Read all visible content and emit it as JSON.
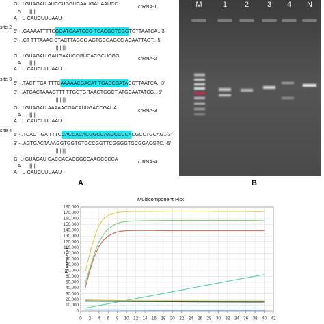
{
  "panel_a": {
    "label": "A",
    "rows": [
      {
        "segments": [
          {
            "text": "G  U GUAGAU "
          },
          {
            "text": "AUCCUGGUCAAUGAUAAUCC",
            "color": "#2b3fb0"
          }
        ],
        "side": "crRNA-1"
      },
      {
        "segments": [
          {
            "text": "   A      ||||||"
          }
        ]
      },
      {
        "segments": [
          {
            "text": "A    U CAUCUUUAAU"
          }
        ]
      },
      {
        "site": "site 2",
        "segments": [
          {
            "text": "5’ -..GAAAAT"
          },
          {
            "text": "TTTC",
            "color": "#c0392b"
          },
          {
            "text": "GGATGAATCCG TCACGCTCGG",
            "highlight": "#22e5ee"
          },
          {
            "text": "TGTTAATCA..-3’"
          }
        ]
      },
      {
        "segments": [
          {
            "text": "3’ -..CT TTTAAAC CTACTTAGGC AGTGCGAGCC ACAATTAGT..-5’"
          }
        ]
      },
      {
        "segments": [
          {
            "text": "                               ||||||||"
          }
        ]
      },
      {
        "segments": [
          {
            "text": "G  U GUAGAU "
          },
          {
            "text": "GAUGAAUCCGUCACGCUCGG",
            "color": "#2b3fb0"
          }
        ],
        "side": "crRNA-2"
      },
      {
        "segments": [
          {
            "text": "   A      ||||||"
          }
        ]
      },
      {
        "segments": [
          {
            "text": "A    U CAUCUUUAAU"
          }
        ]
      },
      {
        "site": "site 3",
        "segments": [
          {
            "text": "5’ -..TACT TGA "
          },
          {
            "text": "TTTC",
            "color": "#c0392b"
          },
          {
            "text": "AAAAACGACAT TGACCGATA",
            "highlight": "#22e5ee"
          },
          {
            "text": "CGTTAATCA..-3’"
          }
        ]
      },
      {
        "segments": [
          {
            "text": "3’ -..ATGACTAAAGTTT TTGCTG TAACTGGCT ATGCAATATCG..-5’"
          }
        ]
      },
      {
        "segments": [
          {
            "text": "                               ||||||||"
          }
        ]
      },
      {
        "segments": [
          {
            "text": "G  U GUAGAU "
          },
          {
            "text": "AAAAACGACAUUGACCGAUA",
            "color": "#2b3fb0"
          }
        ],
        "side": "crRNA-3"
      },
      {
        "segments": [
          {
            "text": "   A      ||||||"
          }
        ]
      },
      {
        "segments": [
          {
            "text": "A    U CAUCUUUAAU"
          }
        ]
      },
      {
        "site": "site 4",
        "segments": [
          {
            "text": "5’ -..TCACT GA "
          },
          {
            "text": "TTTC",
            "color": "#c0392b"
          },
          {
            "text": "CACCACACGGCCAAGCCCCA",
            "highlight": "#22e5ee"
          },
          {
            "text": "CGCCTGCAG..-3’"
          }
        ]
      },
      {
        "segments": [
          {
            "text": "3’ -..AGTGACTAAAGGTGGTGTGCCGGTTCGGGGTGCGGACGTC..-5’"
          }
        ]
      },
      {
        "segments": [
          {
            "text": "                               ||||||||"
          }
        ]
      },
      {
        "segments": [
          {
            "text": "G  U GUAGAU "
          },
          {
            "text": "CACCACACGGCCAAGCCCCA",
            "color": "#2b3fb0"
          }
        ],
        "side": "crRNA-4"
      },
      {
        "segments": [
          {
            "text": "   A      ||||||"
          }
        ]
      },
      {
        "segments": [
          {
            "text": "A    U CAUCUUUAAU"
          }
        ]
      }
    ]
  },
  "panel_b": {
    "label": "B",
    "lanes": [
      "M",
      "1",
      "2",
      "3",
      "4",
      "N"
    ]
  },
  "chart_data": {
    "type": "line",
    "title": "Multicomponent Plot",
    "y_label": "Fluorescence",
    "x": [
      1,
      2,
      3,
      4,
      5,
      6,
      7,
      8,
      9,
      10,
      12,
      15,
      20,
      25,
      30,
      35,
      40
    ],
    "xlim": [
      0,
      42
    ],
    "xticks": [
      0,
      2,
      4,
      6,
      8,
      10,
      12,
      14,
      16,
      18,
      20,
      22,
      24,
      26,
      28,
      30,
      32,
      34,
      36,
      38,
      40,
      42
    ],
    "ylim": [
      0,
      180000
    ],
    "yticks": [
      0,
      {
        "value": 10000,
        "label": "10,000"
      },
      {
        "value": 20000,
        "label": "20,000"
      },
      {
        "value": 30000,
        "label": "30,000"
      },
      {
        "value": 40000,
        "label": "40,000"
      },
      {
        "value": 50000,
        "label": "50,000"
      },
      {
        "value": 60000,
        "label": "60,000"
      },
      {
        "value": 70000,
        "label": "70,000"
      },
      {
        "value": 80000,
        "label": "80,000"
      },
      {
        "value": 90000,
        "label": "90,000"
      },
      {
        "value": 100000,
        "label": "100,000"
      },
      {
        "value": 110000,
        "label": "110,000"
      },
      {
        "value": 120000,
        "label": "120,000"
      },
      {
        "value": 130000,
        "label": "130,000"
      },
      {
        "value": 140000,
        "label": "140,000"
      },
      {
        "value": 150000,
        "label": "150,000"
      },
      {
        "value": 160000,
        "label": "160,000"
      },
      {
        "value": 170000,
        "label": "170,000"
      },
      {
        "value": 180000,
        "label": "180,000"
      }
    ],
    "grid": true,
    "series": [
      {
        "color": "#e0cc4a",
        "values": [
          68000,
          100000,
          128000,
          148000,
          160000,
          166000,
          169000,
          171000,
          172000,
          172500,
          173000,
          173000,
          173500,
          173500,
          173000,
          173000,
          172500
        ]
      },
      {
        "color": "#7fcf7a",
        "values": [
          47000,
          75000,
          100000,
          120000,
          133000,
          142000,
          148000,
          152000,
          154000,
          155000,
          156000,
          156500,
          157000,
          157000,
          157000,
          157000,
          156500
        ]
      },
      {
        "color": "#c8665a",
        "values": [
          40000,
          70000,
          95000,
          112000,
          123000,
          130000,
          134000,
          137000,
          138500,
          139000,
          139500,
          139500,
          139000,
          139000,
          139000,
          139000,
          139000
        ]
      },
      {
        "color": "#5ccfa2",
        "values": [
          5000,
          6500,
          8000,
          9500,
          11000,
          12500,
          14000,
          15500,
          17000,
          18500,
          21500,
          26000,
          33500,
          41000,
          48500,
          56000,
          63000
        ]
      },
      {
        "color": "#c8b84a",
        "values": [
          19000,
          19000,
          18800,
          18800,
          18600,
          18500,
          18400,
          18300,
          18200,
          18100,
          18000,
          17900,
          17800,
          17700,
          17600,
          17600,
          17500
        ]
      },
      {
        "color": "#6fbf6f",
        "values": [
          16500,
          16500,
          16400,
          16400,
          16300,
          16300,
          16300,
          16200,
          16200,
          16200,
          16100,
          16100,
          16000,
          16000,
          16000,
          16000,
          16000
        ]
      },
      {
        "color": "#2f5a4a",
        "values": [
          17500,
          17400,
          17300,
          17200,
          17100,
          17000,
          16900,
          16800,
          16700,
          16600,
          16500,
          16300,
          16000,
          15800,
          15600,
          15500,
          15400
        ]
      },
      {
        "color": "#3a7bd5",
        "values": [
          2000,
          2000,
          1900,
          1900,
          1900,
          1800,
          1800,
          1800,
          1700,
          1700,
          1700,
          1600,
          1600,
          1600,
          1500,
          1500,
          1500
        ]
      }
    ]
  }
}
